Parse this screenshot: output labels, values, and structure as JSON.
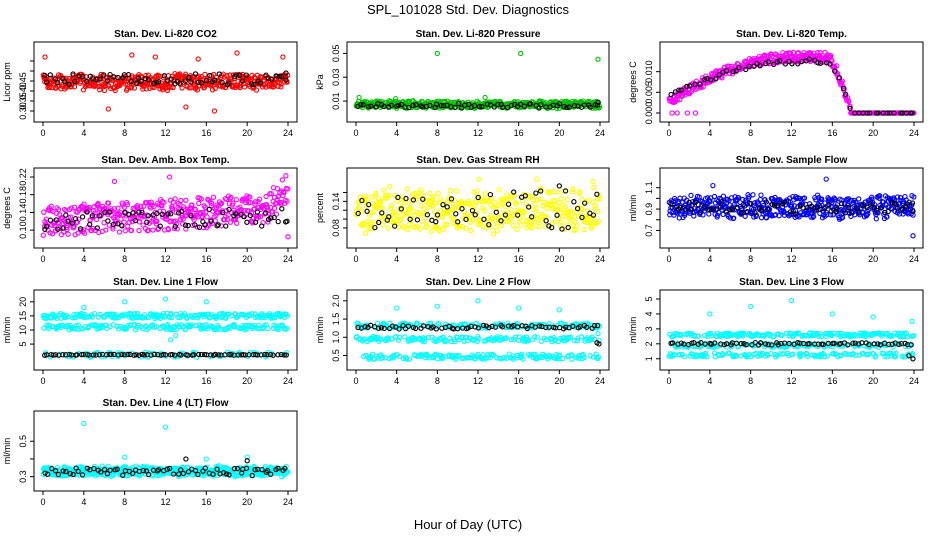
{
  "main_title": "SPL_101028  Std. Dev. Diagnostics",
  "x_axis_title": "Hour of Day (UTC)",
  "x_ticks": [
    0,
    4,
    8,
    12,
    16,
    20,
    24
  ],
  "colors": {
    "co2": "#ff0000",
    "pressure": "#00c000",
    "temp": "#ff00ff",
    "box_temp": "#ff00ff",
    "rh": "#ffff00",
    "sample_flow": "#0000ff",
    "line_flow": "#00ffff",
    "overlay": "#000000"
  },
  "chart_data": [
    {
      "id": "co2",
      "type": "scatter",
      "title": "Stan. Dev. Li-820 CO2",
      "ylabel": "Licor ppm",
      "xlim": [
        0,
        24
      ],
      "ylim": [
        0.29,
        0.6
      ],
      "yticks": [
        "0.30",
        "0.35",
        "0.40",
        "0.45",
        "0.50",
        "0.55"
      ],
      "y_tick_labels_shown": [
        "0.30",
        "0.35",
        "0.40",
        "0.45"
      ],
      "series": [
        {
          "color": "#ff0000",
          "pattern": {
            "type": "band",
            "base": 0.445,
            "amp": 0.045,
            "n": 420,
            "outliers": [
              [
                0.2,
                0.57
              ],
              [
                8.7,
                0.58
              ],
              [
                11.0,
                0.57
              ],
              [
                15.2,
                0.56
              ],
              [
                19.0,
                0.59
              ],
              [
                23.5,
                0.57
              ],
              [
                6.4,
                0.31
              ],
              [
                14.0,
                0.32
              ],
              [
                16.8,
                0.3
              ]
            ]
          }
        },
        {
          "color": "#000000",
          "pattern": {
            "type": "band",
            "base": 0.46,
            "amp": 0.03,
            "n": 70,
            "outliers": [
              [
                23.8,
                0.49
              ]
            ]
          }
        }
      ]
    },
    {
      "id": "pressure",
      "type": "scatter",
      "title": "Stan. Dev. Li-820 Pressure",
      "ylabel": "kPa",
      "xlim": [
        0,
        24
      ],
      "ylim": [
        0.0,
        0.052
      ],
      "yticks": [
        "0.01",
        "0.03",
        "0.05"
      ],
      "series": [
        {
          "color": "#00c000",
          "pattern": {
            "type": "band",
            "base": 0.007,
            "amp": 0.0035,
            "n": 420,
            "outliers": [
              [
                8.0,
                0.05
              ],
              [
                16.2,
                0.05
              ],
              [
                23.8,
                0.045
              ],
              [
                0.3,
                0.013
              ],
              [
                3.9,
                0.012
              ],
              [
                12.7,
                0.013
              ]
            ]
          }
        },
        {
          "color": "#000000",
          "pattern": {
            "type": "band",
            "base": 0.006,
            "amp": 0.002,
            "n": 70,
            "outliers": [
              [
                23.8,
                0.009
              ]
            ]
          }
        }
      ]
    },
    {
      "id": "temp",
      "type": "scatter",
      "title": "Stan. Dev. Li-820 Temp.",
      "ylabel": "degrees C",
      "xlim": [
        0,
        24
      ],
      "ylim": [
        0.0,
        0.015
      ],
      "yticks": [
        "0.000",
        "0.005",
        "0.010"
      ],
      "series": [
        {
          "color": "#ff00ff",
          "pattern": {
            "type": "dome",
            "n": 420,
            "base": 0.003,
            "peak": 0.0135,
            "rise_end": 12.0,
            "fall_start": 15.5,
            "end": 17.8,
            "after": 0.0,
            "amp": 0.0012,
            "outliers": [
              [
                0.3,
                0.0
              ],
              [
                0.8,
                0.0
              ],
              [
                1.8,
                0.0
              ],
              [
                2.6,
                0.0
              ]
            ]
          }
        },
        {
          "color": "#000000",
          "pattern": {
            "type": "dome",
            "n": 60,
            "base": 0.004,
            "peak": 0.0125,
            "rise_end": 12.0,
            "fall_start": 15.5,
            "end": 17.8,
            "after": 0.0,
            "amp": 0.0006,
            "outliers": [
              [
                23.8,
                0.0
              ]
            ]
          }
        }
      ]
    },
    {
      "id": "box_temp",
      "type": "scatter",
      "title": "Stan. Dev. Amb. Box Temp.",
      "ylabel": "degrees C",
      "xlim": [
        0,
        24
      ],
      "ylim": [
        0.08,
        0.22
      ],
      "yticks": [
        "0.10",
        "0.14",
        "0.18",
        "0.22"
      ],
      "series": [
        {
          "color": "#ff00ff",
          "pattern": {
            "type": "drift",
            "n": 420,
            "start": 0.12,
            "end": 0.15,
            "amp": 0.035,
            "late": [
              22.0,
              24.0,
              0.2
            ],
            "outliers": [
              [
                12.4,
                0.22
              ],
              [
                7.0,
                0.21
              ],
              [
                24.0,
                0.085
              ]
            ]
          }
        },
        {
          "color": "#000000",
          "pattern": {
            "type": "drift",
            "n": 70,
            "start": 0.12,
            "end": 0.13,
            "amp": 0.02,
            "outliers": [
              [
                23.9,
                0.12
              ]
            ]
          }
        }
      ]
    },
    {
      "id": "rh",
      "type": "scatter",
      "title": "Stan. Dev. Gas Stream RH",
      "ylabel": "percent",
      "xlim": [
        0,
        24
      ],
      "ylim": [
        0.055,
        0.195
      ],
      "yticks": [
        "0.08",
        "0.10",
        "0.12",
        "0.14",
        "0.16"
      ],
      "y_tick_labels_shown": [
        "0.08",
        "0.14"
      ],
      "series": [
        {
          "color": "#ffff00",
          "pattern": {
            "type": "band",
            "base": 0.12,
            "amp": 0.055,
            "n": 420,
            "outliers": [
              [
                12.1,
                0.19
              ],
              [
                17.8,
                0.19
              ],
              [
                23.3,
                0.185
              ]
            ]
          }
        },
        {
          "color": "#000000",
          "pattern": {
            "type": "band",
            "base": 0.12,
            "amp": 0.05,
            "n": 60,
            "outliers": [
              [
                20.0,
                0.175
              ]
            ]
          }
        }
      ]
    },
    {
      "id": "sample_flow",
      "type": "scatter",
      "title": "Stan. Dev. Sample Flow",
      "ylabel": "ml/min",
      "xlim": [
        0,
        24
      ],
      "ylim": [
        0.62,
        1.2
      ],
      "yticks": [
        "0.7",
        "0.8",
        "0.9",
        "1.0",
        "1.1"
      ],
      "y_tick_labels_shown": [
        "0.7",
        "0.9",
        "1.1"
      ],
      "series": [
        {
          "color": "#0000ff",
          "pattern": {
            "type": "band",
            "base": 0.92,
            "amp": 0.12,
            "n": 460,
            "outliers": [
              [
                15.4,
                1.18
              ],
              [
                23.9,
                0.65
              ],
              [
                4.3,
                1.12
              ]
            ]
          }
        },
        {
          "color": "#000000",
          "pattern": {
            "type": "band",
            "base": 0.92,
            "amp": 0.07,
            "n": 70,
            "outliers": [
              [
                23.9,
                0.88
              ]
            ]
          }
        }
      ]
    },
    {
      "id": "line1",
      "type": "scatter",
      "title": "Stan. Dev. Line 1 Flow",
      "ylabel": "ml/min",
      "xlim": [
        0,
        24
      ],
      "ylim": [
        -1,
        21
      ],
      "yticks": [
        "5",
        "10",
        "15",
        "20"
      ],
      "series": [
        {
          "color": "#00ffff",
          "pattern": {
            "type": "multi",
            "n": 480,
            "levels": [
              15,
              11,
              1.2
            ],
            "weights": [
              0.42,
              0.42,
              0.16
            ],
            "amp": 0.9,
            "outliers": [
              [
                4.0,
                18.0
              ],
              [
                8.0,
                20.0
              ],
              [
                12.0,
                21.0
              ],
              [
                16.0,
                20.0
              ],
              [
                12.5,
                6.5
              ],
              [
                13.0,
                8.0
              ]
            ]
          }
        },
        {
          "color": "#000000",
          "pattern": {
            "type": "multi",
            "n": 80,
            "levels": [
              1.2
            ],
            "weights": [
              1.0
            ],
            "amp": 0.15,
            "outliers": []
          }
        }
      ]
    },
    {
      "id": "line2",
      "type": "scatter",
      "title": "Stan. Dev. Line 2 Flow",
      "ylabel": "ml/min",
      "xlim": [
        0,
        24
      ],
      "ylim": [
        0.35,
        2.05
      ],
      "yticks": [
        "0.5",
        "1.0",
        "1.5",
        "2.0"
      ],
      "series": [
        {
          "color": "#00ffff",
          "pattern": {
            "type": "multi",
            "n": 480,
            "levels": [
              1.32,
              0.95,
              0.47
            ],
            "weights": [
              0.34,
              0.33,
              0.33
            ],
            "amp": 0.07,
            "outliers": [
              [
                4.0,
                1.8
              ],
              [
                8.0,
                1.85
              ],
              [
                12.0,
                2.0
              ],
              [
                16.0,
                1.8
              ],
              [
                20.0,
                1.75
              ],
              [
                23.8,
                1.1
              ]
            ]
          }
        },
        {
          "color": "#000000",
          "pattern": {
            "type": "multi",
            "n": 70,
            "levels": [
              1.28
            ],
            "weights": [
              1.0
            ],
            "amp": 0.05,
            "outliers": [
              [
                23.7,
                0.85
              ],
              [
                23.9,
                0.82
              ]
            ]
          }
        }
      ]
    },
    {
      "id": "line3",
      "type": "scatter",
      "title": "Stan. Dev. Line 3 Flow",
      "ylabel": "ml/min",
      "xlim": [
        0,
        24
      ],
      "ylim": [
        0.85,
        5.0
      ],
      "yticks": [
        "1",
        "2",
        "3",
        "4",
        "5"
      ],
      "series": [
        {
          "color": "#00ffff",
          "pattern": {
            "type": "multi",
            "n": 480,
            "levels": [
              2.6,
              1.9,
              1.25
            ],
            "weights": [
              0.38,
              0.34,
              0.28
            ],
            "amp": 0.13,
            "outliers": [
              [
                4.0,
                4.0
              ],
              [
                8.0,
                4.5
              ],
              [
                12.0,
                4.9
              ],
              [
                16.0,
                4.0
              ],
              [
                20.0,
                3.8
              ],
              [
                23.8,
                3.5
              ]
            ]
          }
        },
        {
          "color": "#000000",
          "pattern": {
            "type": "multi",
            "n": 70,
            "levels": [
              2.0
            ],
            "weights": [
              1.0
            ],
            "amp": 0.08,
            "outliers": [
              [
                23.5,
                1.2
              ],
              [
                23.9,
                1.0
              ]
            ]
          }
        }
      ]
    },
    {
      "id": "line4",
      "type": "scatter",
      "title": "Stan. Dev. Line 4 (LT) Flow",
      "ylabel": "ml/min",
      "xlim": [
        0,
        24
      ],
      "ylim": [
        0.27,
        0.62
      ],
      "yticks": [
        "0.3",
        "0.4",
        "0.5"
      ],
      "y_tick_labels_shown": [
        "0.3",
        "0.5"
      ],
      "series": [
        {
          "color": "#00ffff",
          "pattern": {
            "type": "band",
            "base": 0.33,
            "amp": 0.032,
            "n": 500,
            "outliers": [
              [
                4.0,
                0.6
              ],
              [
                12.0,
                0.58
              ],
              [
                8.0,
                0.41
              ],
              [
                16.0,
                0.4
              ],
              [
                20.0,
                0.41
              ]
            ]
          }
        },
        {
          "color": "#000000",
          "pattern": {
            "type": "band",
            "base": 0.33,
            "amp": 0.025,
            "n": 70,
            "outliers": [
              [
                14.0,
                0.4
              ],
              [
                20.0,
                0.39
              ]
            ]
          }
        }
      ]
    }
  ]
}
